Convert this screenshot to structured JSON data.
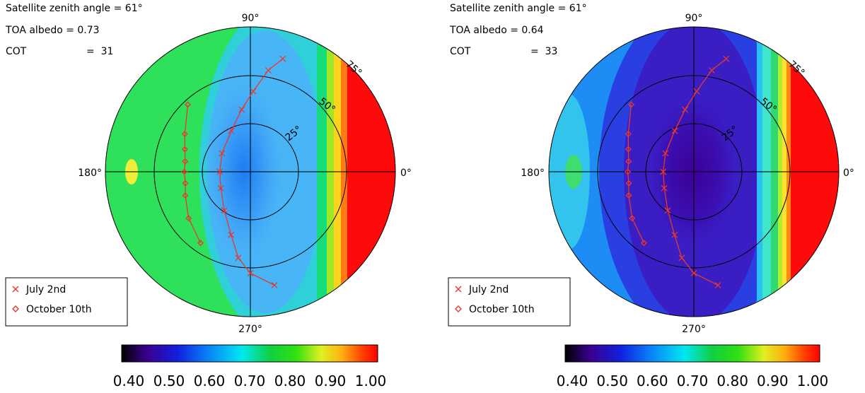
{
  "chart_data": [
    {
      "type": "polar_contour",
      "annotations": {
        "line1": "Satellite zenith angle = 61°",
        "line2": "TOA albedo = 0.73",
        "line3_label": "COT",
        "line3_value": "=  31"
      },
      "direction_labels": [
        "90°",
        "180°",
        "270°",
        "0°"
      ],
      "ring_labels": [
        "25°",
        "50°",
        "75°"
      ],
      "legend": [
        {
          "name": "July 2nd",
          "marker": "x",
          "color": "#e8382a"
        },
        {
          "name": "October 10th",
          "marker": "diamond",
          "color": "#e8382a"
        }
      ],
      "colorbar": {
        "range": [
          0.4,
          1.0
        ],
        "tick_labels": [
          "0.40",
          "0.50",
          "0.60",
          "0.70",
          "0.80",
          "0.90",
          "1.00"
        ]
      },
      "field": {
        "center_value": 0.6,
        "green_band_value": 0.8,
        "max_value": 1.0
      },
      "series": [
        {
          "name": "July 2nd",
          "points": [
            {
              "az": 74,
              "zen": 73
            },
            {
              "az": 80,
              "zen": 64
            },
            {
              "az": 88,
              "zen": 50
            },
            {
              "az": 98,
              "zen": 39
            },
            {
              "az": 115,
              "zen": 28
            },
            {
              "az": 147,
              "zen": 21
            },
            {
              "az": 180,
              "zen": 19
            },
            {
              "az": 209,
              "zen": 21
            },
            {
              "az": 236,
              "zen": 29
            },
            {
              "az": 253,
              "zen": 41
            },
            {
              "az": 262,
              "zen": 54
            },
            {
              "az": 270,
              "zen": 63
            },
            {
              "az": 282,
              "zen": 72
            }
          ]
        },
        {
          "name": "October 10th",
          "points": [
            {
              "az": 133,
              "zen": 57
            },
            {
              "az": 150,
              "zen": 47
            },
            {
              "az": 161,
              "zen": 43
            },
            {
              "az": 171,
              "zen": 41
            },
            {
              "az": 180,
              "zen": 41
            },
            {
              "az": 190,
              "zen": 41
            },
            {
              "az": 200,
              "zen": 43
            },
            {
              "az": 217,
              "zen": 48
            },
            {
              "az": 235,
              "zen": 54
            }
          ]
        }
      ]
    },
    {
      "type": "polar_contour",
      "annotations": {
        "line1": "Satellite zenith angle = 61°",
        "line2": "TOA albedo = 0.64",
        "line3_label": "COT",
        "line3_value": "=  33"
      },
      "direction_labels": [
        "90°",
        "180°",
        "270°",
        "0°"
      ],
      "ring_labels": [
        "25°",
        "50°",
        "75°"
      ],
      "legend": [
        {
          "name": "July 2nd",
          "marker": "x",
          "color": "#e8382a"
        },
        {
          "name": "October 10th",
          "marker": "diamond",
          "color": "#e8382a"
        }
      ],
      "colorbar": {
        "range": [
          0.4,
          1.0
        ],
        "tick_labels": [
          "0.40",
          "0.50",
          "0.60",
          "0.70",
          "0.80",
          "0.90",
          "1.00"
        ]
      },
      "field": {
        "center_value": 0.48,
        "green_band_value": 0.8,
        "max_value": 1.0
      },
      "series": [
        {
          "name": "July 2nd",
          "points": [
            {
              "az": 74,
              "zen": 73
            },
            {
              "az": 80,
              "zen": 64
            },
            {
              "az": 88,
              "zen": 50
            },
            {
              "az": 98,
              "zen": 39
            },
            {
              "az": 115,
              "zen": 28
            },
            {
              "az": 147,
              "zen": 21
            },
            {
              "az": 180,
              "zen": 19
            },
            {
              "az": 209,
              "zen": 21
            },
            {
              "az": 236,
              "zen": 29
            },
            {
              "az": 253,
              "zen": 41
            },
            {
              "az": 262,
              "zen": 54
            },
            {
              "az": 270,
              "zen": 63
            },
            {
              "az": 282,
              "zen": 72
            }
          ]
        },
        {
          "name": "October 10th",
          "points": [
            {
              "az": 133,
              "zen": 57
            },
            {
              "az": 150,
              "zen": 47
            },
            {
              "az": 161,
              "zen": 43
            },
            {
              "az": 171,
              "zen": 41
            },
            {
              "az": 180,
              "zen": 41
            },
            {
              "az": 190,
              "zen": 41
            },
            {
              "az": 200,
              "zen": 43
            },
            {
              "az": 217,
              "zen": 48
            },
            {
              "az": 235,
              "zen": 54
            }
          ]
        }
      ]
    }
  ]
}
